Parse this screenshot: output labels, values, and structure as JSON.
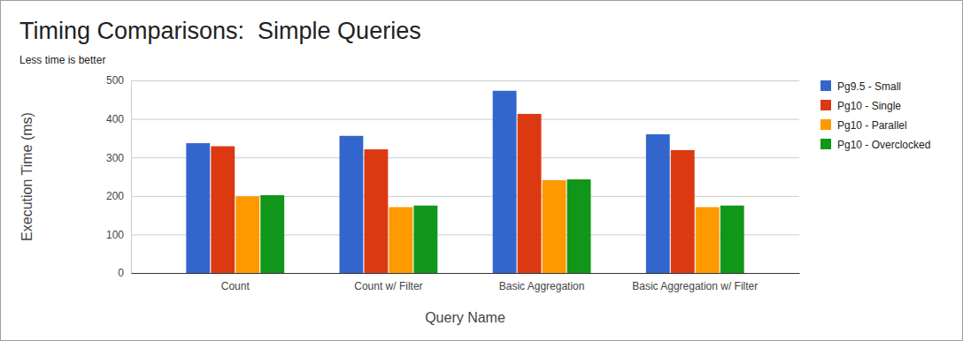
{
  "chart_data": {
    "type": "bar",
    "title": "Timing Comparisons:  Simple Queries",
    "subtitle": "Less time is better",
    "x_label": "Query Name",
    "y_label": "Execution Time (ms)",
    "categories": [
      "Count",
      "Count w/ Filter",
      "Basic Aggregation",
      "Basic Aggregation w/ Filter"
    ],
    "series": [
      {
        "name": "Pg9.5 - Small",
        "color": "#3366cc",
        "values": [
          337,
          356,
          473,
          360
        ]
      },
      {
        "name": "Pg10 - Single",
        "color": "#dc3912",
        "values": [
          329,
          321,
          413,
          319
        ]
      },
      {
        "name": "Pg10 - Parallel",
        "color": "#ff9900",
        "values": [
          199,
          171,
          241,
          171
        ]
      },
      {
        "name": "Pg10 - Overclocked",
        "color": "#109618",
        "values": [
          202,
          175,
          243,
          175
        ]
      }
    ],
    "ylim": [
      0,
      500
    ],
    "yticks": [
      0,
      100,
      200,
      300,
      400,
      500
    ],
    "grid": true,
    "legend": "right"
  }
}
